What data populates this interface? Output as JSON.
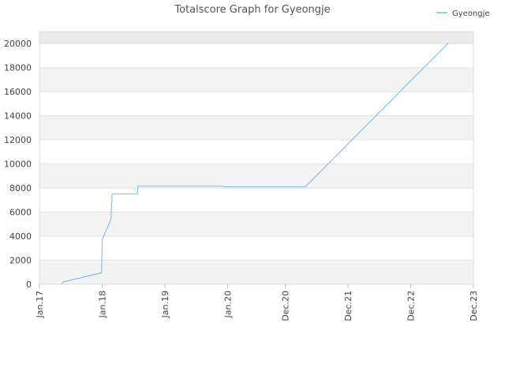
{
  "chart_data": {
    "type": "line",
    "title": "Totalscore Graph for Gyeongje",
    "x": [
      2017.35,
      2017.38,
      2017.99,
      2018.0,
      2018.14,
      2018.16,
      2018.56,
      2018.57,
      2019.92,
      2019.93,
      2021.24,
      2023.52
    ],
    "series": [
      {
        "name": "Gyeongje",
        "color": "#7cb5ec",
        "values": [
          0,
          200,
          950,
          3700,
          5400,
          7500,
          7500,
          8150,
          8150,
          8100,
          8100,
          20050
        ]
      }
    ],
    "xlim": [
      2017,
      2023.92
    ],
    "xticks": [
      {
        "value": 2017,
        "label": "Jan.17"
      },
      {
        "value": 2018,
        "label": "Jan.18"
      },
      {
        "value": 2019,
        "label": "Jan.19"
      },
      {
        "value": 2020,
        "label": "Jan.20"
      },
      {
        "value": 2020.92,
        "label": "Dec.20"
      },
      {
        "value": 2021.92,
        "label": "Dec.21"
      },
      {
        "value": 2022.92,
        "label": "Dec.22"
      },
      {
        "value": 2023.92,
        "label": "Dec.23"
      }
    ],
    "ylim": [
      0,
      21000
    ],
    "yticks": [
      0,
      2000,
      4000,
      6000,
      8000,
      10000,
      12000,
      14000,
      16000,
      18000,
      20000
    ],
    "grid": true,
    "legend": "top-right"
  }
}
